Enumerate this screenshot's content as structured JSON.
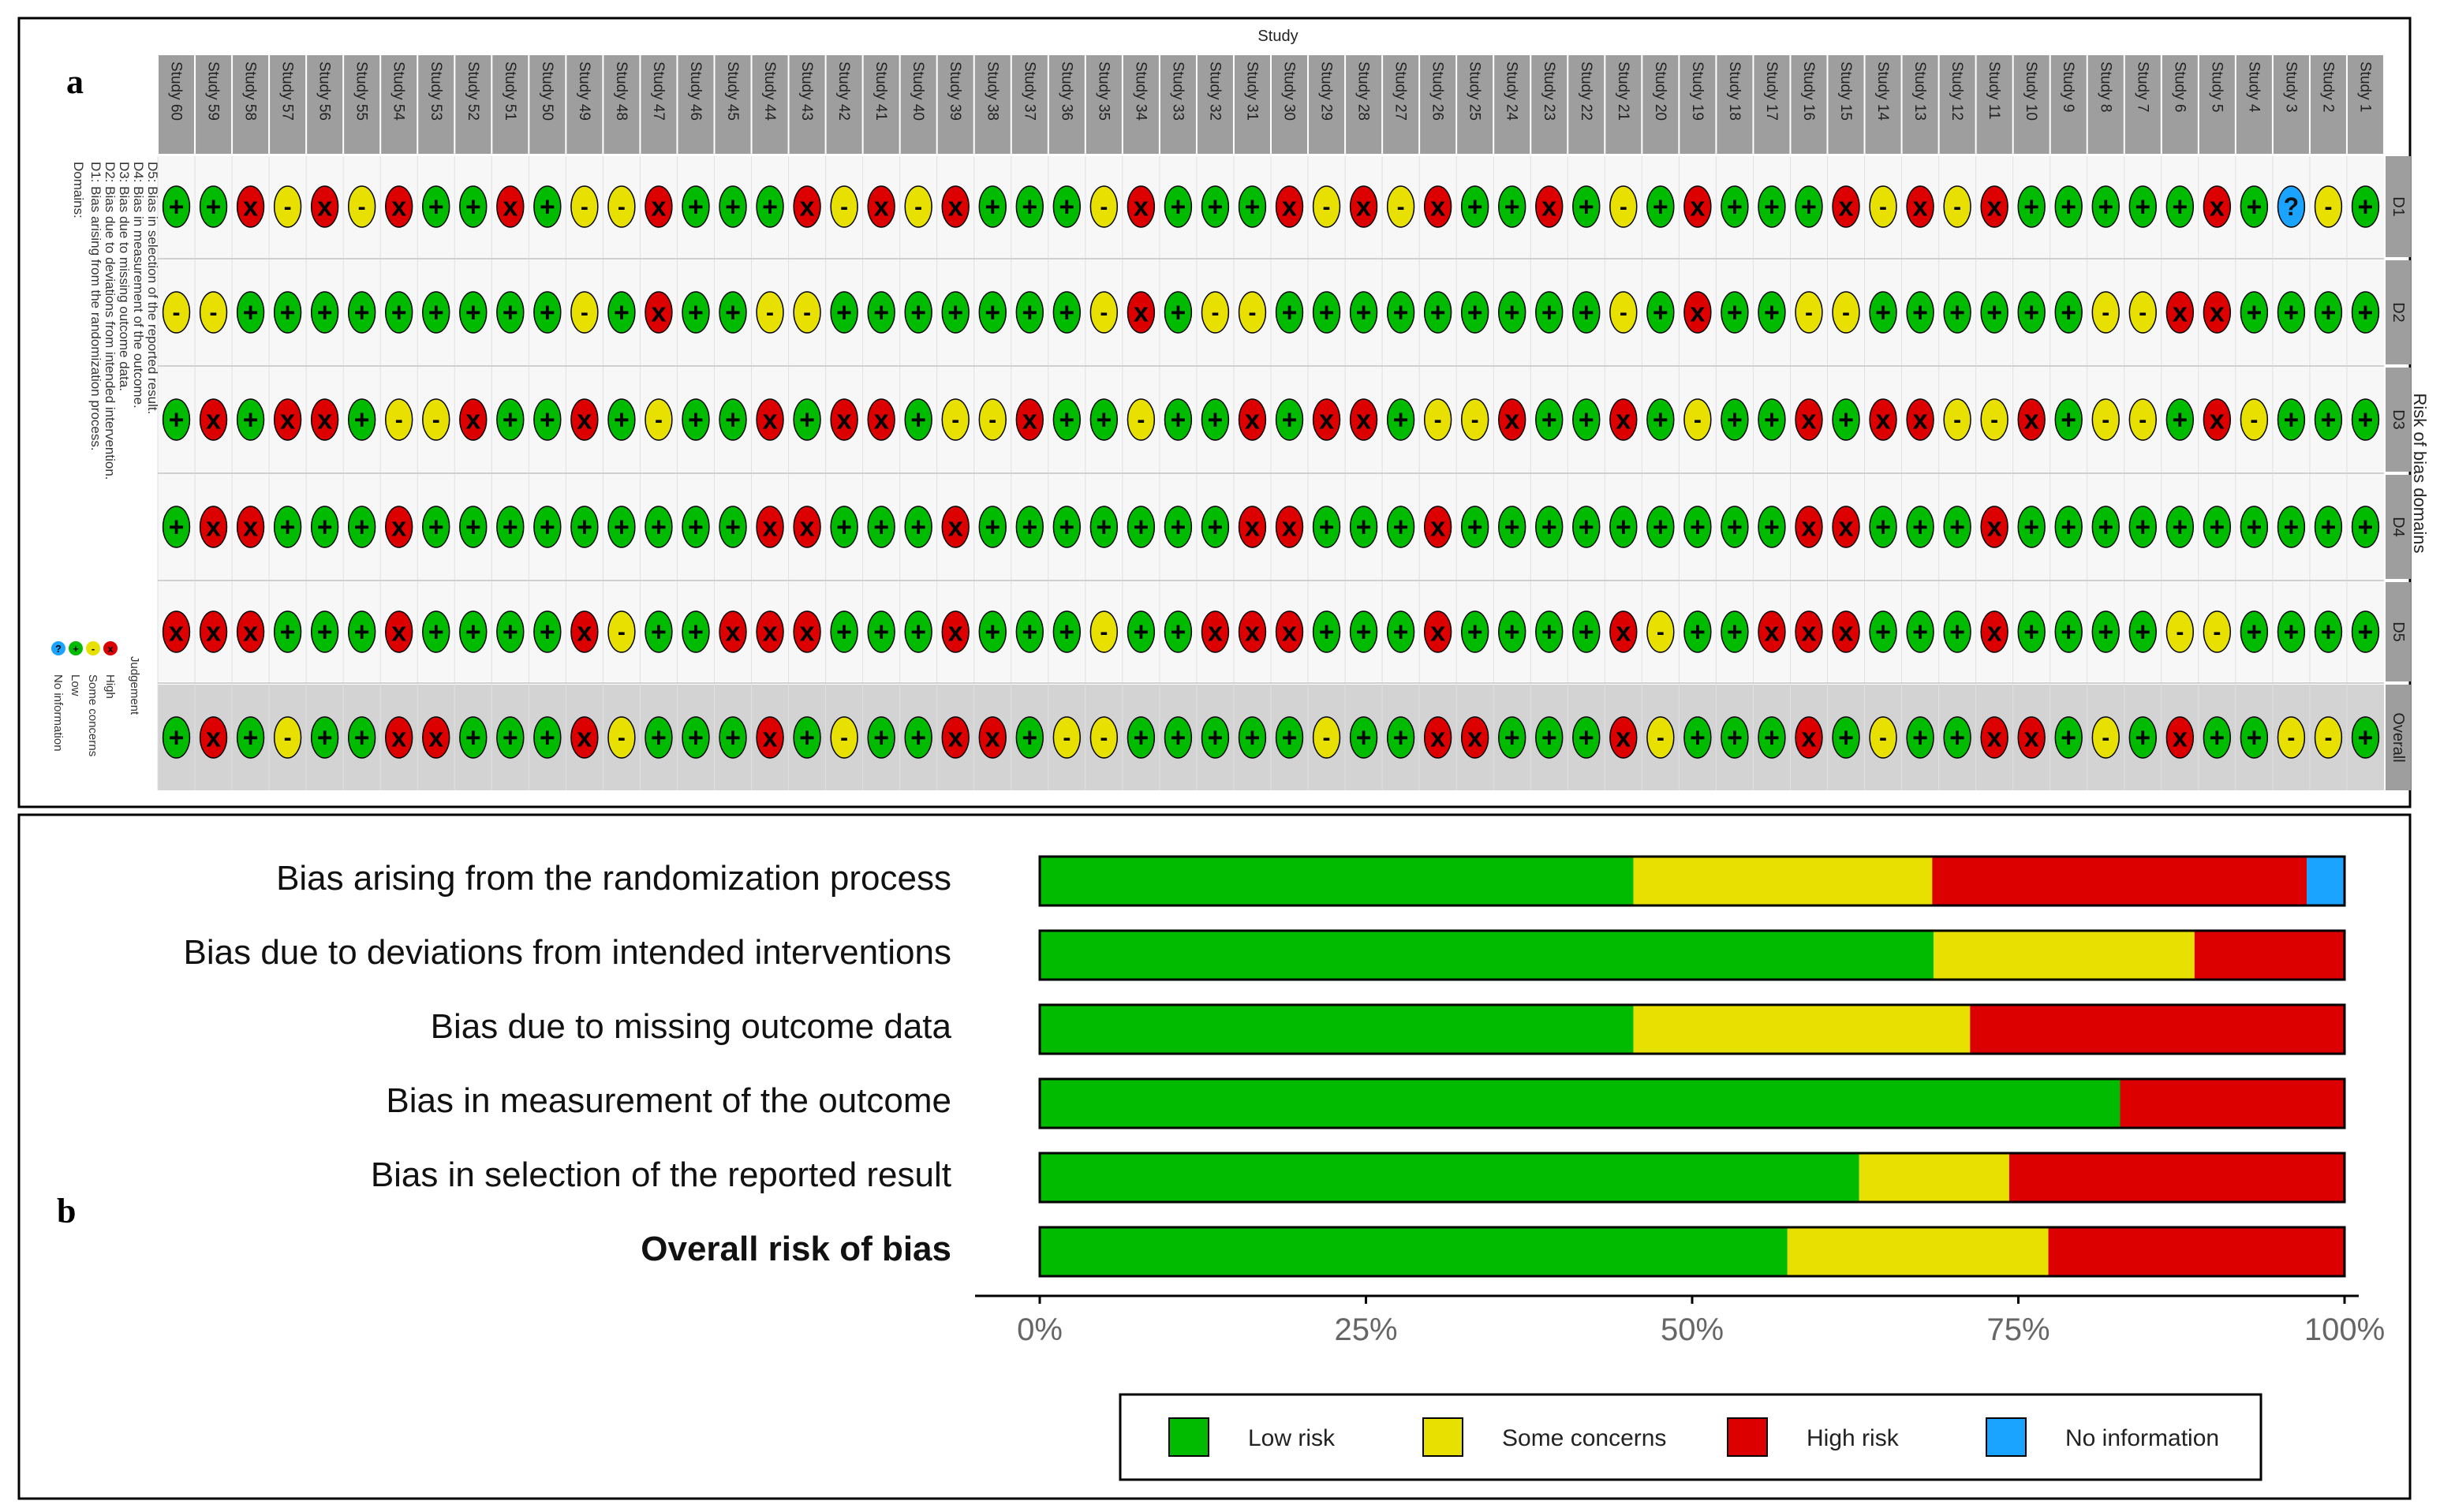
{
  "panel_a": {
    "label": "a",
    "title": "Study",
    "side_title": "Risk of bias domains",
    "domains_header": "Domains:",
    "domains": [
      "D1: Bias arising from the randomization process.",
      "D2: Bias due to deviations from intended intervention.",
      "D3: Bias due to missing outcome data.",
      "D4: Bias in measurement of the outcome.",
      "D5: Bias in selection of the reported result."
    ],
    "judgement_header": "Judgement",
    "judgement_legend": [
      {
        "symbol": "x",
        "label": "High",
        "color": "#dd0000"
      },
      {
        "symbol": "-",
        "label": "Some concerns",
        "color": "#e8e000"
      },
      {
        "symbol": "+",
        "label": "Low",
        "color": "#00bb00"
      },
      {
        "symbol": "?",
        "label": "No information",
        "color": "#1aa3ff"
      }
    ]
  },
  "panel_b": {
    "label": "b"
  },
  "chart_data": [
    {
      "type": "table",
      "title": "Study",
      "studies": [
        "Study 60",
        "Study 59",
        "Study 58",
        "Study 57",
        "Study 56",
        "Study 55",
        "Study 54",
        "Study 53",
        "Study 52",
        "Study 51",
        "Study 50",
        "Study 49",
        "Study 48",
        "Study 47",
        "Study 46",
        "Study 45",
        "Study 44",
        "Study 43",
        "Study 42",
        "Study 41",
        "Study 40",
        "Study 39",
        "Study 38",
        "Study 37",
        "Study 36",
        "Study 35",
        "Study 34",
        "Study 33",
        "Study 32",
        "Study 31",
        "Study 30",
        "Study 29",
        "Study 28",
        "Study 27",
        "Study 26",
        "Study 25",
        "Study 24",
        "Study 23",
        "Study 22",
        "Study 21",
        "Study 20",
        "Study 19",
        "Study 18",
        "Study 17",
        "Study 16",
        "Study 15",
        "Study 14",
        "Study 13",
        "Study 12",
        "Study 11",
        "Study 10",
        "Study 9",
        "Study 8",
        "Study 7",
        "Study 6",
        "Study 5",
        "Study 4",
        "Study 3",
        "Study 2",
        "Study 1"
      ],
      "domains": [
        "D1",
        "D2",
        "D3",
        "D4",
        "D5",
        "Overall"
      ],
      "symbols": {
        "L": "+",
        "S": "-",
        "H": "x",
        "N": "?"
      },
      "colors": {
        "L": "#00bb00",
        "S": "#e8e000",
        "H": "#dd0000",
        "N": "#1aa3ff"
      },
      "judgements": {
        "D1": [
          "L",
          "L",
          "H",
          "S",
          "H",
          "S",
          "H",
          "L",
          "L",
          "H",
          "L",
          "S",
          "S",
          "H",
          "L",
          "L",
          "L",
          "H",
          "S",
          "H",
          "S",
          "H",
          "L",
          "L",
          "L",
          "S",
          "H",
          "L",
          "L",
          "L",
          "H",
          "S",
          "H",
          "S",
          "H",
          "L",
          "L",
          "H",
          "L",
          "S",
          "L",
          "H",
          "L",
          "L",
          "L",
          "H",
          "S",
          "H",
          "S",
          "H",
          "L",
          "L",
          "L",
          "L",
          "L",
          "H",
          "L",
          "N",
          "S",
          "L"
        ],
        "D2": [
          "S",
          "S",
          "L",
          "L",
          "L",
          "L",
          "L",
          "L",
          "L",
          "L",
          "L",
          "S",
          "L",
          "H",
          "L",
          "L",
          "S",
          "S",
          "L",
          "L",
          "L",
          "L",
          "L",
          "L",
          "L",
          "S",
          "H",
          "L",
          "S",
          "S",
          "L",
          "L",
          "L",
          "L",
          "L",
          "L",
          "L",
          "L",
          "L",
          "S",
          "L",
          "H",
          "L",
          "L",
          "S",
          "S",
          "L",
          "L",
          "L",
          "L",
          "L",
          "L",
          "S",
          "S",
          "H",
          "H",
          "L",
          "L",
          "L",
          "L"
        ],
        "D3": [
          "L",
          "H",
          "L",
          "H",
          "H",
          "L",
          "S",
          "S",
          "H",
          "L",
          "L",
          "H",
          "L",
          "S",
          "L",
          "L",
          "H",
          "L",
          "H",
          "H",
          "L",
          "S",
          "S",
          "H",
          "L",
          "L",
          "S",
          "L",
          "L",
          "H",
          "L",
          "H",
          "H",
          "L",
          "S",
          "S",
          "H",
          "L",
          "L",
          "H",
          "L",
          "S",
          "L",
          "L",
          "H",
          "L",
          "H",
          "H",
          "S",
          "S",
          "H",
          "L",
          "S",
          "S",
          "L",
          "H",
          "S",
          "L",
          "L",
          "L"
        ],
        "D4": [
          "L",
          "H",
          "H",
          "L",
          "L",
          "L",
          "H",
          "L",
          "L",
          "L",
          "L",
          "L",
          "L",
          "L",
          "L",
          "L",
          "H",
          "H",
          "L",
          "L",
          "L",
          "H",
          "L",
          "L",
          "L",
          "L",
          "L",
          "L",
          "L",
          "H",
          "H",
          "L",
          "L",
          "L",
          "H",
          "L",
          "L",
          "L",
          "L",
          "L",
          "L",
          "L",
          "L",
          "L",
          "H",
          "H",
          "L",
          "L",
          "L",
          "H",
          "L",
          "L",
          "L",
          "L",
          "L",
          "L",
          "L",
          "L",
          "L",
          "L"
        ],
        "D5": [
          "H",
          "H",
          "H",
          "L",
          "L",
          "L",
          "H",
          "L",
          "L",
          "L",
          "L",
          "H",
          "S",
          "L",
          "L",
          "H",
          "H",
          "H",
          "L",
          "L",
          "L",
          "H",
          "L",
          "L",
          "L",
          "S",
          "L",
          "L",
          "H",
          "H",
          "H",
          "L",
          "L",
          "L",
          "H",
          "L",
          "L",
          "L",
          "L",
          "H",
          "S",
          "L",
          "L",
          "H",
          "H",
          "H",
          "L",
          "L",
          "L",
          "H",
          "L",
          "L",
          "L",
          "L",
          "S",
          "S",
          "L",
          "L",
          "L",
          "L"
        ],
        "Overall": [
          "L",
          "H",
          "L",
          "S",
          "L",
          "L",
          "H",
          "H",
          "L",
          "L",
          "L",
          "H",
          "S",
          "L",
          "L",
          "L",
          "H",
          "L",
          "S",
          "L",
          "L",
          "H",
          "H",
          "L",
          "S",
          "S",
          "L",
          "L",
          "L",
          "L",
          "L",
          "S",
          "L",
          "L",
          "H",
          "H",
          "L",
          "L",
          "L",
          "H",
          "S",
          "L",
          "L",
          "L",
          "H",
          "L",
          "S",
          "L",
          "L",
          "H",
          "H",
          "L",
          "S",
          "L",
          "H",
          "L",
          "L",
          "S",
          "S",
          "L"
        ]
      }
    },
    {
      "type": "bar",
      "orientation": "horizontal",
      "stacked": true,
      "categories": [
        "Bias arising from the randomization process",
        "Bias due to deviations from intended interventions",
        "Bias due to missing outcome data",
        "Bias in measurement of the outcome",
        "Bias in selection of the reported result",
        "Overall risk of bias"
      ],
      "bold_categories": [
        "Overall risk of bias"
      ],
      "series": [
        {
          "name": "Low risk",
          "color": "#00bb00",
          "values": [
            45.5,
            68.5,
            45.5,
            82.8,
            62.8,
            57.3
          ]
        },
        {
          "name": "Some concerns",
          "color": "#e8e000",
          "values": [
            22.9,
            20.0,
            25.8,
            0,
            11.5,
            20.0
          ]
        },
        {
          "name": "High risk",
          "color": "#dd0000",
          "values": [
            28.7,
            11.5,
            28.7,
            17.2,
            25.7,
            22.7
          ]
        },
        {
          "name": "No information",
          "color": "#1aa3ff",
          "values": [
            2.9,
            0,
            0,
            0,
            0,
            0
          ]
        }
      ],
      "xlim": [
        0,
        100
      ],
      "xticks": [
        "0%",
        "25%",
        "50%",
        "75%",
        "100%"
      ],
      "legend_position": "bottom"
    }
  ]
}
